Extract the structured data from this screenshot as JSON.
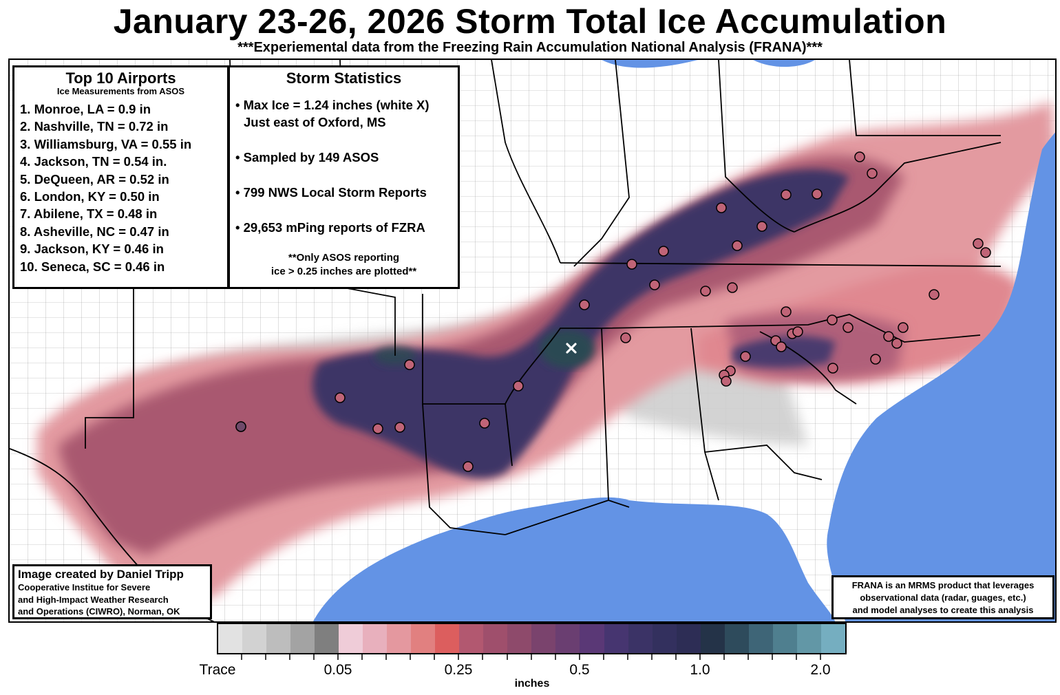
{
  "title": "January 23-26, 2026 Storm Total Ice Accumulation",
  "subtitle": "***Experiemental data from the Freezing Rain Accumulation National Analysis (FRANA)***",
  "airports": {
    "heading": "Top 10 Airports",
    "subheading": "Ice Measurements from ASOS",
    "items": [
      "1. Monroe, LA  = 0.9 in",
      "2. Nashville, TN = 0.72 in",
      "3. Williamsburg, VA = 0.55 in",
      "4. Jackson, TN = 0.54 in.",
      "5. DeQueen, AR = 0.52 in",
      "6. London, KY = 0.50 in",
      "7. Abilene, TX = 0.48 in",
      "8. Asheville, NC = 0.47 in",
      "9. Jackson, KY = 0.46 in",
      "10. Seneca, SC = 0.46 in"
    ]
  },
  "stats": {
    "heading": "Storm Statistics",
    "max_line1": "• Max Ice = 1.24 inches (white X)",
    "max_line2": "Just east of Oxford, MS",
    "asos": "• Sampled by 149 ASOS",
    "lsr": "• 799 NWS Local Storm Reports",
    "mping": "• 29,653 mPing reports of FZRA",
    "note_line1": "**Only ASOS reporting",
    "note_line2": "ice > 0.25 inches are plotted**"
  },
  "credit": {
    "line1": "Image created by Daniel Tripp",
    "line2": "Cooperative Institue for Severe",
    "line3": "and High-Impact Weather Research",
    "line4": "and Operations (CIWRO), Norman, OK"
  },
  "frana_note": {
    "line1": "FRANA is an MRMS product that leverages",
    "line2": "observational data (radar, guages, etc.)",
    "line3": "and model analyses to create this analysis"
  },
  "legend": {
    "unit": "inches",
    "labels": [
      "Trace",
      "0.05",
      "0.25",
      "0.5",
      "1.0",
      "2.0"
    ],
    "colors": [
      "#e2e2e2",
      "#d2d2d2",
      "#bdbdbd",
      "#a3a3a3",
      "#7f7f7f",
      "#efccd8",
      "#e8b0bd",
      "#e4989f",
      "#e18080",
      "#dc5e5e",
      "#b25870",
      "#9f4f6c",
      "#8e4a6b",
      "#7a436d",
      "#6a3e71",
      "#5a3876",
      "#463570",
      "#3b3366",
      "#33305e",
      "#2d2d55",
      "#243348",
      "#2e4b5c",
      "#3e6577",
      "#4f7f8f",
      "#6297a6",
      "#75aec0"
    ],
    "max_marker": "white X",
    "water_color": "#6393e5"
  }
}
